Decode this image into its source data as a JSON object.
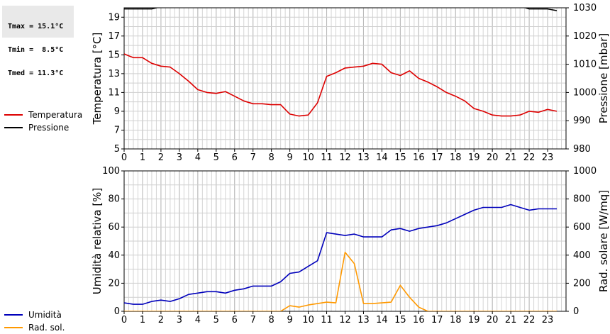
{
  "stats": {
    "tmax": "Tmax = 15.1°C",
    "tmin": "Tmin =  8.5°C",
    "tmed": "Tmed = 11.3°C"
  },
  "chart_data": [
    {
      "type": "line",
      "ylabel": "Temperatura [°C]",
      "y2label": "Pressione [mbar]",
      "ylim": [
        5,
        20
      ],
      "y2lim": [
        980,
        1030
      ],
      "yticks": [
        5,
        7,
        9,
        11,
        13,
        15,
        17,
        19
      ],
      "y2ticks": [
        980,
        990,
        1000,
        1010,
        1020,
        1030
      ],
      "xticks": [
        "0",
        "1",
        "2",
        "3",
        "4",
        "5",
        "6",
        "7",
        "8",
        "9",
        "10",
        "11",
        "12",
        "13",
        "14",
        "15",
        "16",
        "17",
        "18",
        "19",
        "20",
        "21",
        "22",
        "23"
      ],
      "xlim": [
        0,
        24
      ],
      "grid": true,
      "legend_position": "left",
      "colors": {
        "temperatura": "#dd0000",
        "pressione": "#000000"
      },
      "series": [
        {
          "name": "Temperatura",
          "axis": "left",
          "x": [
            0,
            0.25,
            0.5,
            1,
            1.5,
            2,
            2.5,
            3,
            3.5,
            4,
            4.5,
            5,
            5.5,
            6,
            6.5,
            7,
            7.5,
            8,
            8.5,
            9,
            9.5,
            10,
            10.5,
            11,
            11.5,
            12,
            12.5,
            13,
            13.5,
            14,
            14.5,
            15,
            15.5,
            16,
            16.5,
            17,
            17.5,
            18,
            18.5,
            19,
            19.5,
            20,
            20.5,
            21,
            21.5,
            22,
            22.5,
            23,
            23.5
          ],
          "values": [
            15.1,
            14.9,
            14.7,
            14.7,
            14.1,
            13.8,
            13.7,
            13.0,
            12.2,
            11.3,
            11.0,
            10.9,
            11.1,
            10.6,
            10.1,
            9.8,
            9.8,
            9.7,
            9.7,
            8.7,
            8.5,
            8.6,
            9.9,
            12.7,
            13.1,
            13.6,
            13.7,
            13.8,
            14.1,
            14.0,
            13.1,
            12.8,
            13.3,
            12.5,
            12.1,
            11.6,
            11.0,
            10.6,
            10.1,
            9.3,
            9.0,
            8.6,
            8.5,
            8.5,
            8.6,
            9.0,
            8.9,
            9.2,
            9.0
          ]
        },
        {
          "name": "Pressione",
          "axis": "right",
          "x": [
            0,
            0.5,
            1,
            1.5,
            2,
            2.5,
            21.5,
            22,
            22.5,
            23,
            23.5
          ],
          "values": [
            1029.6,
            1029.6,
            1029.6,
            1029.6,
            1030.4,
            1031,
            1030.6,
            1029.6,
            1029.6,
            1029.6,
            1029.0
          ]
        }
      ]
    },
    {
      "type": "line",
      "ylabel": "Umidità relativa [%]",
      "y2label": "Rad. solare [W/mq]",
      "ylim": [
        0,
        100
      ],
      "y2lim": [
        0,
        1000
      ],
      "yticks": [
        0,
        20,
        40,
        60,
        80,
        100
      ],
      "y2ticks": [
        0,
        200,
        400,
        600,
        800,
        1000
      ],
      "xticks": [
        "0",
        "1",
        "2",
        "3",
        "4",
        "5",
        "6",
        "7",
        "8",
        "9",
        "10",
        "11",
        "12",
        "13",
        "14",
        "15",
        "16",
        "17",
        "18",
        "19",
        "20",
        "21",
        "22",
        "23"
      ],
      "xlim": [
        0,
        24
      ],
      "grid": true,
      "legend_position": "left",
      "colors": {
        "umidita": "#0000bb",
        "radsol": "#ff9900"
      },
      "series": [
        {
          "name": "Umidità",
          "axis": "left",
          "x": [
            0,
            0.5,
            1,
            1.5,
            2,
            2.5,
            3,
            3.5,
            4,
            4.5,
            5,
            5.5,
            6,
            6.5,
            7,
            7.5,
            8,
            8.5,
            9,
            9.5,
            10,
            10.5,
            11,
            11.5,
            12,
            12.5,
            13,
            13.5,
            14,
            14.5,
            15,
            15.5,
            16,
            16.5,
            17,
            17.5,
            18,
            18.5,
            19,
            19.5,
            20,
            20.5,
            21,
            21.5,
            22,
            22.5,
            23,
            23.5
          ],
          "values": [
            6,
            5,
            5,
            7,
            8,
            7,
            9,
            12,
            13,
            14,
            14,
            13,
            15,
            16,
            18,
            18,
            18,
            21,
            27,
            28,
            32,
            36,
            56,
            55,
            54,
            55,
            53,
            53,
            53,
            58,
            59,
            57,
            59,
            60,
            61,
            63,
            66,
            69,
            72,
            74,
            74,
            74,
            76,
            74,
            72,
            73,
            73,
            73
          ]
        },
        {
          "name": "Rad. sol.",
          "axis": "right",
          "x": [
            0,
            8.5,
            9,
            9.5,
            10,
            10.5,
            11,
            11.5,
            12,
            12.5,
            13,
            13.5,
            14,
            14.5,
            15,
            15.5,
            16,
            16.5,
            17,
            23.5
          ],
          "values": [
            0,
            0,
            40,
            30,
            45,
            55,
            65,
            60,
            420,
            340,
            55,
            55,
            60,
            65,
            185,
            100,
            30,
            0,
            0,
            0
          ]
        }
      ]
    }
  ]
}
